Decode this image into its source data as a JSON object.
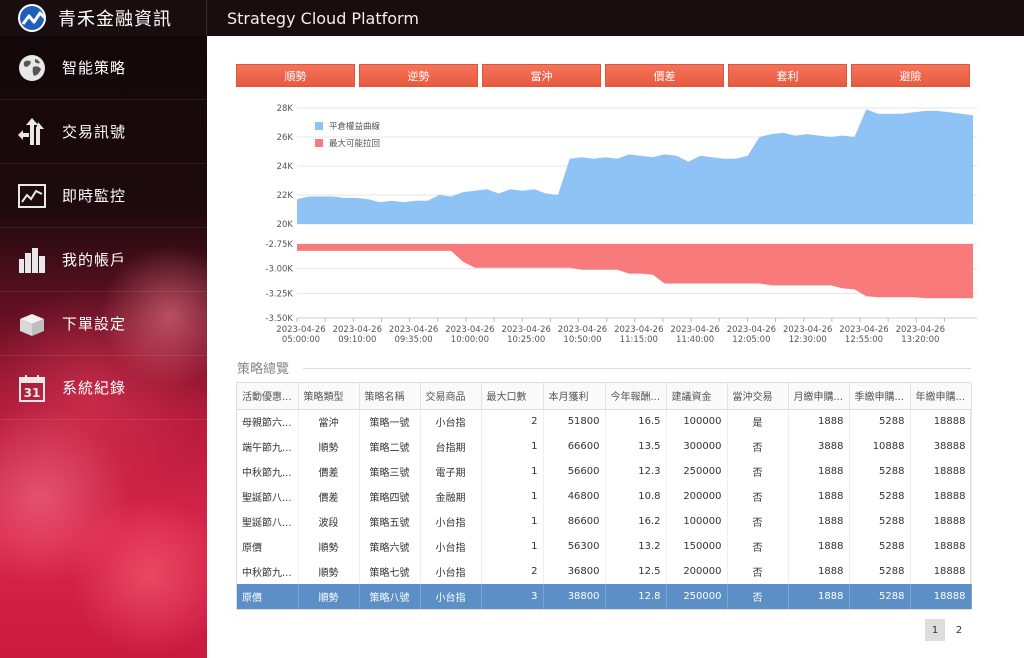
{
  "header": {
    "brand": "青禾金融資訊",
    "title": "Strategy Cloud Platform",
    "colors": {
      "bar": "#1a0d0f",
      "logo": "#1f5fb8"
    }
  },
  "sidebar": {
    "items": [
      {
        "label": "智能策略",
        "icon": "globe-icon"
      },
      {
        "label": "交易訊號",
        "icon": "arrows-icon"
      },
      {
        "label": "即時監控",
        "icon": "line-chart-icon"
      },
      {
        "label": "我的帳戶",
        "icon": "buildings-icon"
      },
      {
        "label": "下單設定",
        "icon": "box-icon"
      },
      {
        "label": "系統紀錄",
        "icon": "calendar-icon"
      }
    ]
  },
  "tabs": [
    "順勢",
    "逆勢",
    "當沖",
    "價差",
    "套利",
    "避險"
  ],
  "chart_data": {
    "type": "area",
    "x_ticks": [
      [
        "2023-04-26",
        "05:00:00"
      ],
      [
        "2023-04-26",
        "09:10:00"
      ],
      [
        "2023-04-26",
        "09:35:00"
      ],
      [
        "2023-04-26",
        "10:00:00"
      ],
      [
        "2023-04-26",
        "10:25:00"
      ],
      [
        "2023-04-26",
        "10:50:00"
      ],
      [
        "2023-04-26",
        "11:15:00"
      ],
      [
        "2023-04-26",
        "11:40:00"
      ],
      [
        "2023-04-26",
        "12:05:00"
      ],
      [
        "2023-04-26",
        "12:30:00"
      ],
      [
        "2023-04-26",
        "12:55:00"
      ],
      [
        "2023-04-26",
        "13:20:00"
      ]
    ],
    "top": {
      "y_ticks": [
        "28K",
        "26K",
        "24K",
        "22K",
        "20K"
      ],
      "ylim": [
        20000,
        28000
      ],
      "legend": [
        {
          "name": "平倉權益曲線",
          "color": "#8fc3f5"
        },
        {
          "name": "最大可能拉回",
          "color": "#f87a7a"
        }
      ],
      "values": [
        21700,
        21900,
        21900,
        21900,
        21800,
        21800,
        21700,
        21500,
        21600,
        21500,
        21600,
        21600,
        22000,
        21900,
        22200,
        22300,
        22400,
        22100,
        22400,
        22300,
        22400,
        22100,
        22000,
        24500,
        24600,
        24500,
        24600,
        24500,
        24800,
        24700,
        24600,
        24800,
        24700,
        24300,
        24700,
        24600,
        24500,
        24500,
        24700,
        26000,
        26200,
        26300,
        26100,
        26200,
        26100,
        26000,
        26100,
        26000,
        27900,
        27600,
        27600,
        27600,
        27700,
        27800,
        27800,
        27700,
        27600,
        27500
      ]
    },
    "bottom": {
      "y_ticks": [
        "-2.75K",
        "-3.00K",
        "-3.25K",
        "-3.50K"
      ],
      "ylim": [
        -3500,
        -2750
      ],
      "values": [
        -2820,
        -2820,
        -2820,
        -2820,
        -2820,
        -2820,
        -2820,
        -2820,
        -2820,
        -2820,
        -2820,
        -2820,
        -2820,
        -2820,
        -2930,
        -2990,
        -2990,
        -2990,
        -2990,
        -2990,
        -2990,
        -2990,
        -2990,
        -2990,
        -3010,
        -3010,
        -3010,
        -3010,
        -3050,
        -3050,
        -3060,
        -3150,
        -3150,
        -3150,
        -3150,
        -3150,
        -3150,
        -3150,
        -3150,
        -3150,
        -3170,
        -3170,
        -3170,
        -3170,
        -3170,
        -3170,
        -3200,
        -3210,
        -3280,
        -3290,
        -3290,
        -3290,
        -3290,
        -3300,
        -3300,
        -3300,
        -3300,
        -3300
      ]
    }
  },
  "summary": {
    "title": "策略總覽",
    "columns": [
      "活動優惠...",
      "策略類型",
      "策略名稱",
      "交易商品",
      "最大口數",
      "本月獲利",
      "今年報酬...",
      "建議資金",
      "當沖交易",
      "月繳申購...",
      "季繳申購...",
      "年繳申購..."
    ],
    "rows": [
      [
        "母親節六...",
        "當沖",
        "策略一號",
        "小台指",
        "2",
        "51800",
        "16.5",
        "100000",
        "是",
        "1888",
        "5288",
        "18888"
      ],
      [
        "端午節九...",
        "順勢",
        "策略二號",
        "台指期",
        "1",
        "66600",
        "13.5",
        "300000",
        "否",
        "3888",
        "10888",
        "38888"
      ],
      [
        "中秋節九...",
        "價差",
        "策略三號",
        "電子期",
        "1",
        "56600",
        "12.3",
        "250000",
        "否",
        "1888",
        "5288",
        "18888"
      ],
      [
        "聖誕節八...",
        "價差",
        "策略四號",
        "金融期",
        "1",
        "46800",
        "10.8",
        "200000",
        "否",
        "1888",
        "5288",
        "18888"
      ],
      [
        "聖誕節八...",
        "波段",
        "策略五號",
        "小台指",
        "1",
        "86600",
        "16.2",
        "100000",
        "否",
        "1888",
        "5288",
        "18888"
      ],
      [
        "原價",
        "順勢",
        "策略六號",
        "小台指",
        "1",
        "56300",
        "13.2",
        "150000",
        "否",
        "1888",
        "5288",
        "18888"
      ],
      [
        "中秋節九...",
        "順勢",
        "策略七號",
        "小台指",
        "2",
        "36800",
        "12.5",
        "200000",
        "否",
        "1888",
        "5288",
        "18888"
      ],
      [
        "原價",
        "順勢",
        "策略八號",
        "小台指",
        "3",
        "38800",
        "12.8",
        "250000",
        "否",
        "1888",
        "5288",
        "18888"
      ]
    ],
    "selected_row": 7
  },
  "pager": {
    "pages": [
      "1",
      "2"
    ],
    "current": "1"
  }
}
